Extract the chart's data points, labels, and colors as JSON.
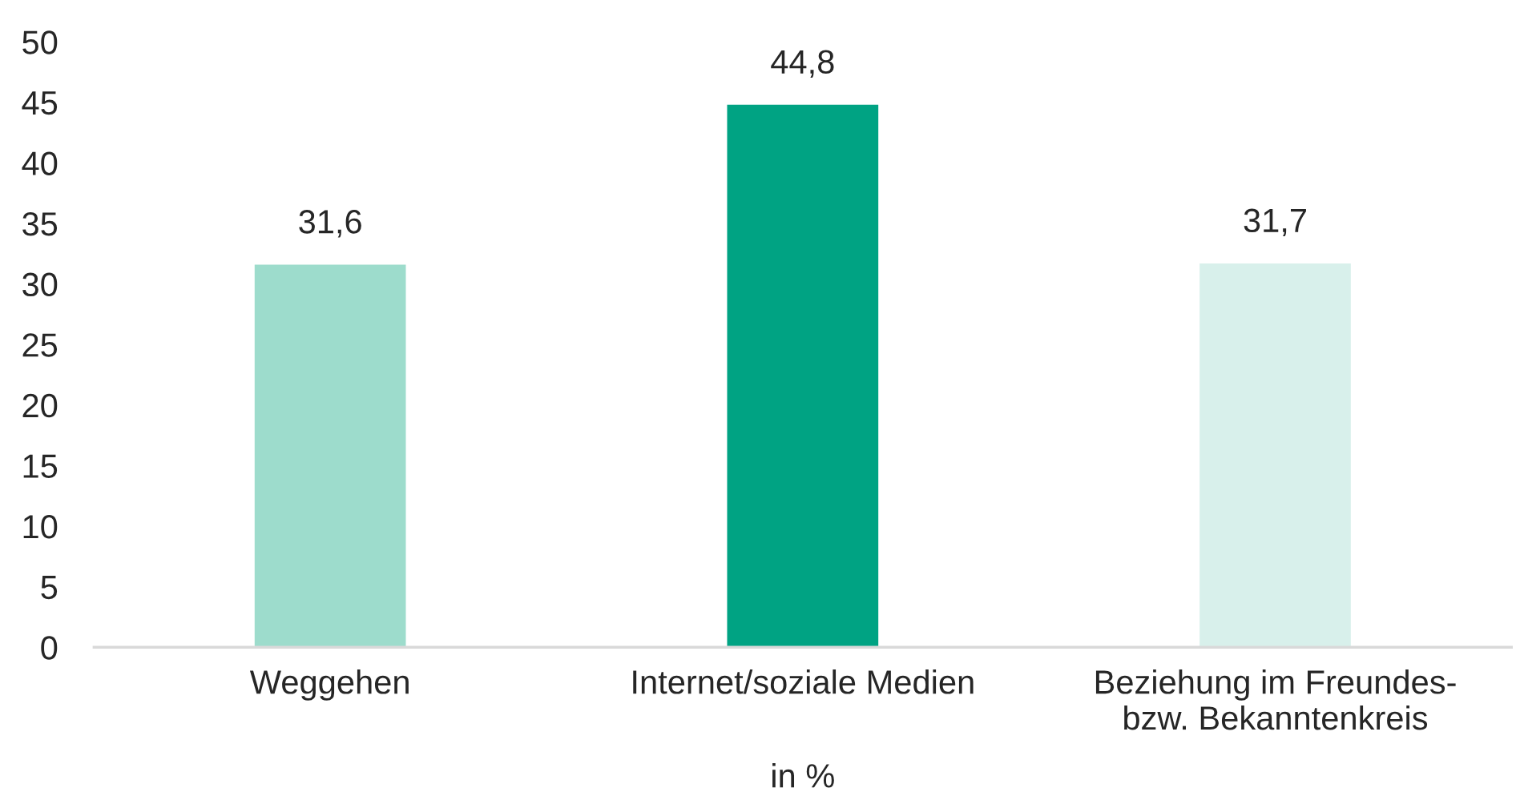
{
  "chart_data": {
    "type": "bar",
    "categories": [
      "Weggehen",
      "Internet/soziale Medien",
      "Beziehung im Freundes-\nbzw. Bekanntenkreis"
    ],
    "values": [
      31.6,
      44.8,
      31.7
    ],
    "colors": [
      "#9ddccc",
      "#00a383",
      "#d8f0eb"
    ],
    "value_labels": [
      "31,6",
      "44,8",
      "31,7"
    ],
    "xlabel": "in %",
    "ylim": [
      0,
      50
    ],
    "yticks": [
      0,
      5,
      10,
      15,
      20,
      25,
      30,
      35,
      40,
      45,
      50
    ],
    "grid": false,
    "legend": false
  }
}
